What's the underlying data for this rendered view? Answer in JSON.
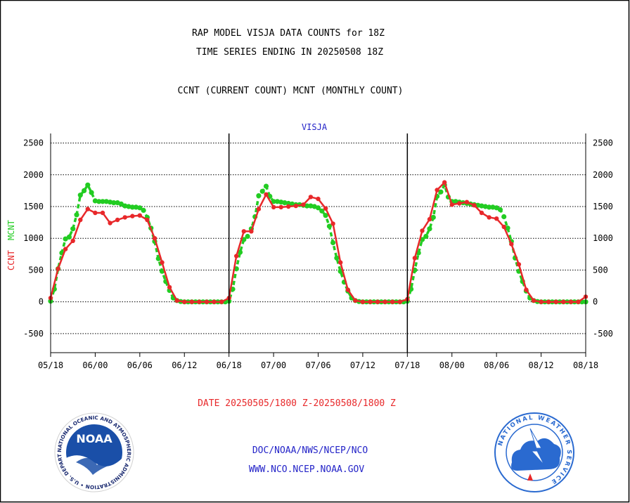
{
  "header": {
    "title_line1": "RAP MODEL VISJA DATA COUNTS for 18Z",
    "title_line2": "TIME SERIES ENDING IN 20250508 18Z",
    "subtitle": "CCNT (CURRENT COUNT) MCNT (MONTHLY COUNT)"
  },
  "footer": {
    "date_range": "DATE 20250505/1800 Z-20250508/1800 Z",
    "org_line": "DOC/NOAA/NWS/NCEP/NCO",
    "url_line": "WWW.NCO.NCEP.NOAA.GOV"
  },
  "logos": {
    "noaa_text": "NOAA",
    "noaa_ring_text": "NATIONAL OCEANIC AND ATMOSPHERIC ADMINISTRATION • U.S. DEPARTMENT OF COMMERCE",
    "nws_ring_text": "NATIONAL WEATHER SERVICE"
  },
  "colors": {
    "ccnt": "#e8282a",
    "mcnt": "#22cc22",
    "title_blue": "#2323c8",
    "noaa_blue": "#1a4fa8",
    "nws_blue": "#2a6ad0"
  },
  "chart_data": {
    "type": "line",
    "title": "VISJA",
    "ylabel_ccnt": "CCNT",
    "ylabel_mcnt": "MCNT",
    "ylim": [
      -800,
      2650
    ],
    "yticks": [
      -500,
      0,
      500,
      1000,
      1500,
      2000,
      2500
    ],
    "ytick_labels": [
      "-500",
      "0",
      "500",
      "1000",
      "1500",
      "2000",
      "2500"
    ],
    "x_unit": "hours from 05/18",
    "xlim": [
      0,
      72
    ],
    "xticks": [
      0,
      6,
      12,
      18,
      24,
      30,
      36,
      42,
      48,
      54,
      60,
      66,
      72
    ],
    "xtick_labels": [
      "05/18",
      "06/00",
      "06/06",
      "06/12",
      "06/18",
      "07/00",
      "07/06",
      "07/12",
      "07/18",
      "08/00",
      "08/06",
      "08/12",
      "08/18"
    ],
    "day_separators": [
      24,
      48
    ],
    "grid": "horizontal dotted",
    "series": [
      {
        "name": "CCNT",
        "color": "#e8282a",
        "x": [
          0,
          1,
          2,
          3,
          4,
          5,
          6,
          7,
          8,
          9,
          10,
          11,
          12,
          13,
          14,
          15,
          16,
          17,
          18,
          19,
          20,
          21,
          22,
          23,
          24,
          25,
          26,
          27,
          28,
          29,
          30,
          31,
          32,
          33,
          34,
          35,
          36,
          37,
          38,
          39,
          40,
          41,
          42,
          43,
          44,
          45,
          46,
          47,
          48,
          49,
          50,
          51,
          52,
          53,
          54,
          55,
          56,
          57,
          58,
          59,
          60,
          61,
          62,
          63,
          64,
          65,
          66,
          67,
          68,
          69,
          70,
          71,
          72
        ],
        "values": [
          60,
          520,
          830,
          960,
          1290,
          1460,
          1400,
          1400,
          1240,
          1290,
          1330,
          1350,
          1360,
          1290,
          1000,
          620,
          230,
          20,
          0,
          0,
          0,
          0,
          0,
          0,
          60,
          720,
          1110,
          1110,
          1460,
          1690,
          1490,
          1490,
          1500,
          1510,
          1530,
          1650,
          1620,
          1470,
          1230,
          620,
          190,
          20,
          0,
          0,
          0,
          0,
          0,
          0,
          40,
          690,
          1120,
          1300,
          1760,
          1880,
          1530,
          1550,
          1570,
          1520,
          1400,
          1330,
          1310,
          1180,
          910,
          590,
          190,
          20,
          0,
          0,
          0,
          0,
          0,
          0,
          80
        ]
      },
      {
        "name": "MCNT",
        "color": "#22cc22",
        "x": [
          0,
          0.5,
          1,
          1.5,
          2,
          2.5,
          3,
          3.5,
          4,
          4.5,
          5,
          5.5,
          6,
          6.5,
          7,
          7.5,
          8,
          8.5,
          9,
          9.5,
          10,
          10.5,
          11,
          11.5,
          12,
          12.5,
          13,
          13.5,
          14,
          14.5,
          15,
          15.5,
          16,
          16.5,
          17,
          17.5,
          18,
          18.5,
          19,
          19.5,
          20,
          20.5,
          21,
          21.5,
          22,
          22.5,
          23,
          23.5,
          24,
          24.5,
          25,
          25.5,
          26,
          26.5,
          27,
          27.5,
          28,
          28.5,
          29,
          29.5,
          30,
          30.5,
          31,
          31.5,
          32,
          32.5,
          33,
          33.5,
          34,
          34.5,
          35,
          35.5,
          36,
          36.5,
          37,
          37.5,
          38,
          38.5,
          39,
          39.5,
          40,
          40.5,
          41,
          41.5,
          42,
          42.5,
          43,
          43.5,
          44,
          44.5,
          45,
          45.5,
          46,
          46.5,
          47,
          47.5,
          48,
          48.5,
          49,
          49.5,
          50,
          50.5,
          51,
          51.5,
          52,
          52.5,
          53,
          53.5,
          54,
          54.5,
          55,
          55.5,
          56,
          56.5,
          57,
          57.5,
          58,
          58.5,
          59,
          59.5,
          60,
          60.5,
          61,
          61.5,
          62,
          62.5,
          63,
          63.5,
          64,
          64.5,
          65,
          65.5,
          66,
          66.5,
          67,
          67.5,
          68,
          68.5,
          69,
          69.5,
          70,
          70.5,
          71,
          71.5,
          72
        ],
        "values": [
          10,
          200,
          520,
          770,
          990,
          1020,
          1150,
          1370,
          1680,
          1750,
          1840,
          1720,
          1590,
          1580,
          1580,
          1580,
          1570,
          1560,
          1560,
          1540,
          1510,
          1500,
          1490,
          1490,
          1480,
          1440,
          1330,
          1160,
          950,
          680,
          480,
          320,
          180,
          60,
          20,
          5,
          0,
          0,
          0,
          0,
          0,
          0,
          0,
          0,
          0,
          0,
          0,
          0,
          10,
          200,
          520,
          780,
          980,
          1030,
          1150,
          1340,
          1670,
          1740,
          1820,
          1660,
          1580,
          1580,
          1570,
          1560,
          1550,
          1540,
          1530,
          1530,
          1520,
          1510,
          1510,
          1500,
          1480,
          1430,
          1360,
          1190,
          930,
          690,
          480,
          310,
          170,
          60,
          20,
          5,
          0,
          0,
          0,
          0,
          0,
          0,
          0,
          0,
          0,
          0,
          0,
          0,
          10,
          200,
          500,
          770,
          980,
          1030,
          1150,
          1330,
          1660,
          1730,
          1840,
          1650,
          1580,
          1580,
          1570,
          1560,
          1550,
          1540,
          1530,
          1520,
          1510,
          1500,
          1490,
          1490,
          1480,
          1450,
          1340,
          1160,
          950,
          690,
          480,
          320,
          170,
          60,
          20,
          5,
          0,
          0,
          0,
          0,
          0,
          0,
          0,
          0,
          0,
          0,
          0,
          0,
          0
        ]
      }
    ]
  }
}
